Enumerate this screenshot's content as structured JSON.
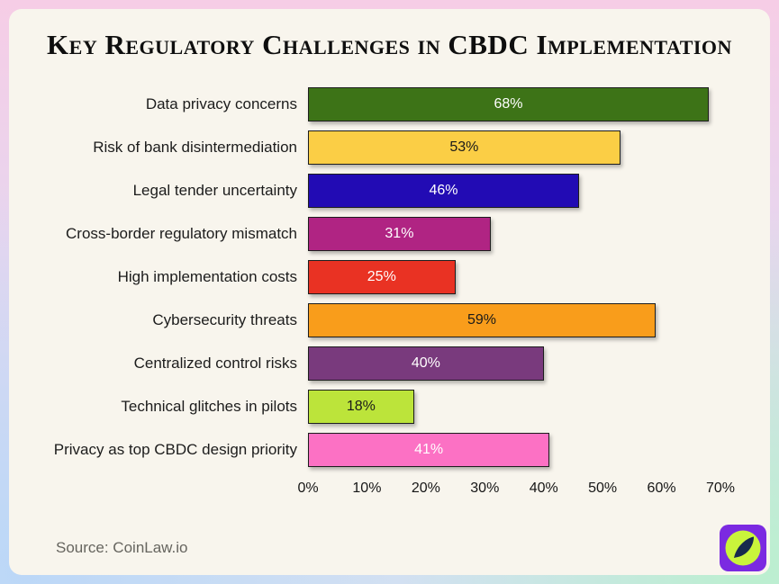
{
  "title": "Key Regulatory Challenges in CBDC Implementation",
  "source": "Source: CoinLaw.io",
  "logo": {
    "bg_color": "#7b2ae1",
    "circle_color": "#c9f43b",
    "leaf_color": "#16294d"
  },
  "chart_data": {
    "type": "bar",
    "orientation": "horizontal",
    "title": "Key Regulatory Challenges in CBDC Implementation",
    "categories": [
      "Data privacy concerns",
      "Risk of bank disintermediation",
      "Legal tender uncertainty",
      "Cross-border regulatory mismatch",
      "High implementation costs",
      "Cybersecurity threats",
      "Centralized control risks",
      "Technical glitches in pilots",
      "Privacy as top CBDC design priority"
    ],
    "values": [
      68,
      53,
      46,
      31,
      25,
      59,
      40,
      18,
      41
    ],
    "value_suffix": "%",
    "bar_colors": [
      "#3d7317",
      "#fbce45",
      "#220bb4",
      "#b02483",
      "#e93223",
      "#f99d1b",
      "#793a7d",
      "#bce43a",
      "#fc71c4"
    ],
    "value_label_colors": [
      "#ffffff",
      "#1a1a1a",
      "#ffffff",
      "#ffffff",
      "#ffffff",
      "#1a1a1a",
      "#ffffff",
      "#1a1a1a",
      "#ffffff"
    ],
    "xlabel": "",
    "ylabel": "",
    "xlim": [
      0,
      70
    ],
    "x_ticks": [
      "0%",
      "10%",
      "20%",
      "30%",
      "40%",
      "50%",
      "60%",
      "70%"
    ],
    "grid": false,
    "legend": false
  }
}
